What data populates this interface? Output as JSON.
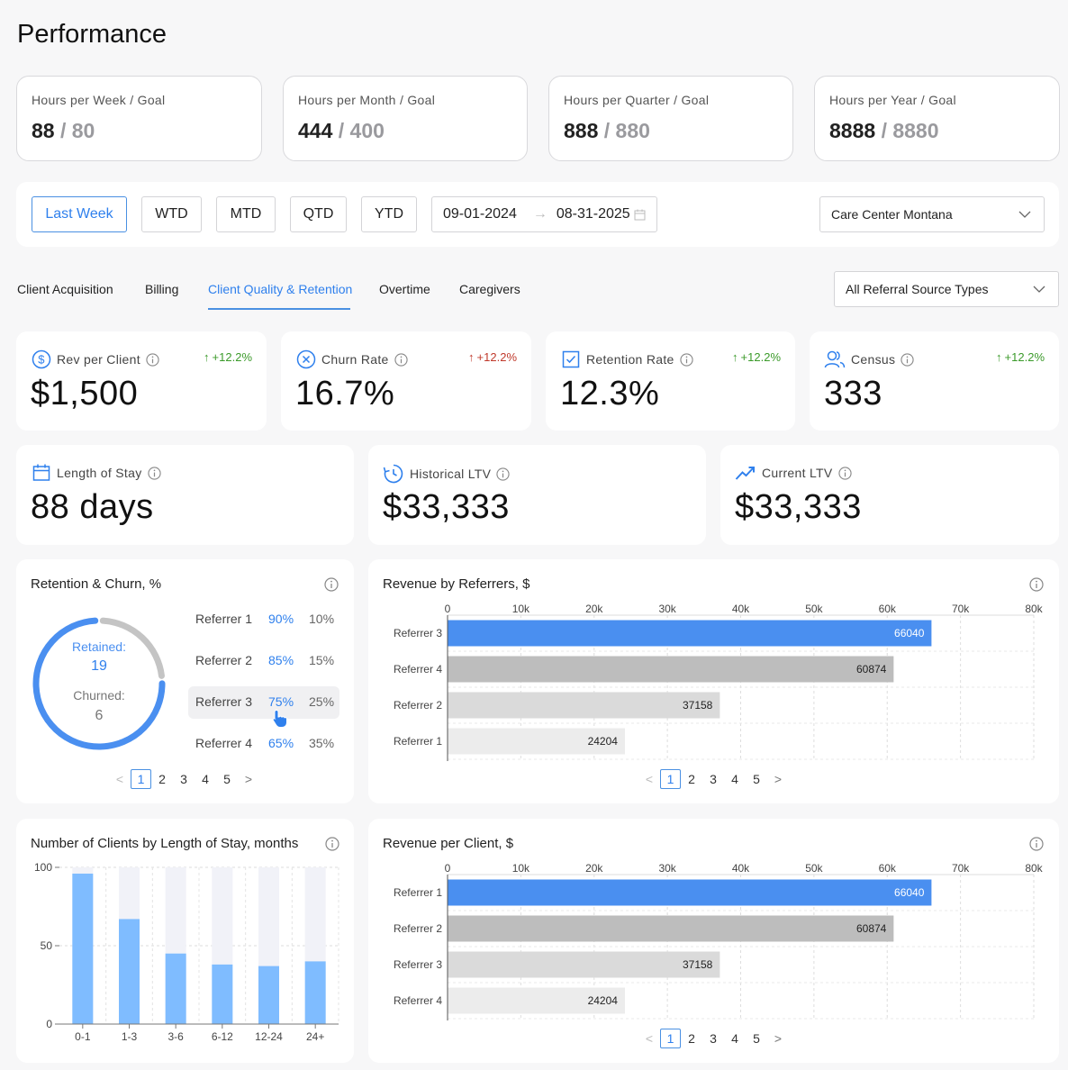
{
  "page_title": "Performance",
  "goals": [
    {
      "label": "Hours per Week / Goal",
      "value": "88",
      "goal": "/ 80"
    },
    {
      "label": "Hours per Month / Goal",
      "value": "444",
      "goal": "/ 400"
    },
    {
      "label": "Hours per Quarter / Goal",
      "value": "888",
      "goal": "/ 880"
    },
    {
      "label": "Hours per Year / Goal",
      "value": "8888",
      "goal": "/ 8880"
    }
  ],
  "filters": {
    "periods": [
      "Last Week",
      "WTD",
      "MTD",
      "QTD",
      "YTD"
    ],
    "active_period": "Last Week",
    "date_from": "09-01-2024",
    "date_to": "08-31-2025",
    "location": "Care Center Montana"
  },
  "tabs": [
    "Client Acquisition",
    "Billing",
    "Client Quality & Retention",
    "Overtime",
    "Caregivers"
  ],
  "active_tab": "Client Quality & Retention",
  "referral_filter": "All Referral Source Types",
  "kpis": [
    {
      "label": "Rev per Client",
      "value": "$1,500",
      "delta": "+12.2%",
      "icon": "dollar-icon",
      "trend": "good"
    },
    {
      "label": "Churn Rate",
      "value": "16.7%",
      "delta": "+12.2%",
      "icon": "x-circle-icon",
      "trend": "bad"
    },
    {
      "label": "Retention Rate",
      "value": "12.3%",
      "delta": "+12.2%",
      "icon": "checkbox-icon",
      "trend": "good"
    },
    {
      "label": "Census",
      "value": "333",
      "delta": "+12.2%",
      "icon": "users-icon",
      "trend": "good"
    }
  ],
  "kpis2": [
    {
      "label": "Length of Stay",
      "value": "88 days",
      "icon": "calendar-icon"
    },
    {
      "label": "Historical LTV",
      "value": "$33,333",
      "icon": "history-icon"
    },
    {
      "label": "Current LTV",
      "value": "$33,333",
      "icon": "trend-up-icon"
    }
  ],
  "retention": {
    "title": "Retention & Churn, %",
    "retained_label": "Retained:",
    "retained_value": "19",
    "churned_label": "Churned:",
    "churned_value": "6",
    "rows": [
      {
        "name": "Referrer 1",
        "retained": "90%",
        "churned": "10%"
      },
      {
        "name": "Referrer 2",
        "retained": "85%",
        "churned": "15%"
      },
      {
        "name": "Referrer 3",
        "retained": "75%",
        "churned": "25%"
      },
      {
        "name": "Referrer 4",
        "retained": "65%",
        "churned": "35%"
      }
    ],
    "pages": [
      "1",
      "2",
      "3",
      "4",
      "5"
    ]
  },
  "chart_data": [
    {
      "type": "bar",
      "orientation": "horizontal",
      "title": "Revenue by Referrers, $",
      "categories": [
        "Referrer 3",
        "Referrer 4",
        "Referrer 2",
        "Referrer 1"
      ],
      "values": [
        66040,
        60874,
        37158,
        24204
      ],
      "xlim": [
        0,
        80000
      ],
      "ticks": [
        "0",
        "10k",
        "20k",
        "30k",
        "40k",
        "50k",
        "60k",
        "70k",
        "80k"
      ],
      "colors": [
        "#4a8ff0",
        "#bdbdbd",
        "#dadada",
        "#ececec"
      ],
      "pages": [
        "1",
        "2",
        "3",
        "4",
        "5"
      ]
    },
    {
      "type": "bar",
      "title": "Number of Clients by Length of Stay, months",
      "categories": [
        "0-1",
        "1-3",
        "3-6",
        "6-12",
        "12-24",
        "24+"
      ],
      "values": [
        96,
        67,
        45,
        38,
        37,
        40
      ],
      "ylim": [
        0,
        100
      ],
      "yticks": [
        "0",
        "50",
        "100"
      ],
      "colors": [
        "#7fbcff",
        "#f1f2f8"
      ]
    },
    {
      "type": "bar",
      "orientation": "horizontal",
      "title": "Revenue per Client, $",
      "categories": [
        "Referrer 1",
        "Referrer 2",
        "Referrer 3",
        "Referrer 4"
      ],
      "values": [
        66040,
        60874,
        37158,
        24204
      ],
      "xlim": [
        0,
        80000
      ],
      "ticks": [
        "0",
        "10k",
        "20k",
        "30k",
        "40k",
        "50k",
        "60k",
        "70k",
        "80k"
      ],
      "colors": [
        "#4a8ff0",
        "#bdbdbd",
        "#dadada",
        "#ececec"
      ],
      "pages": [
        "1",
        "2",
        "3",
        "4",
        "5"
      ]
    }
  ]
}
